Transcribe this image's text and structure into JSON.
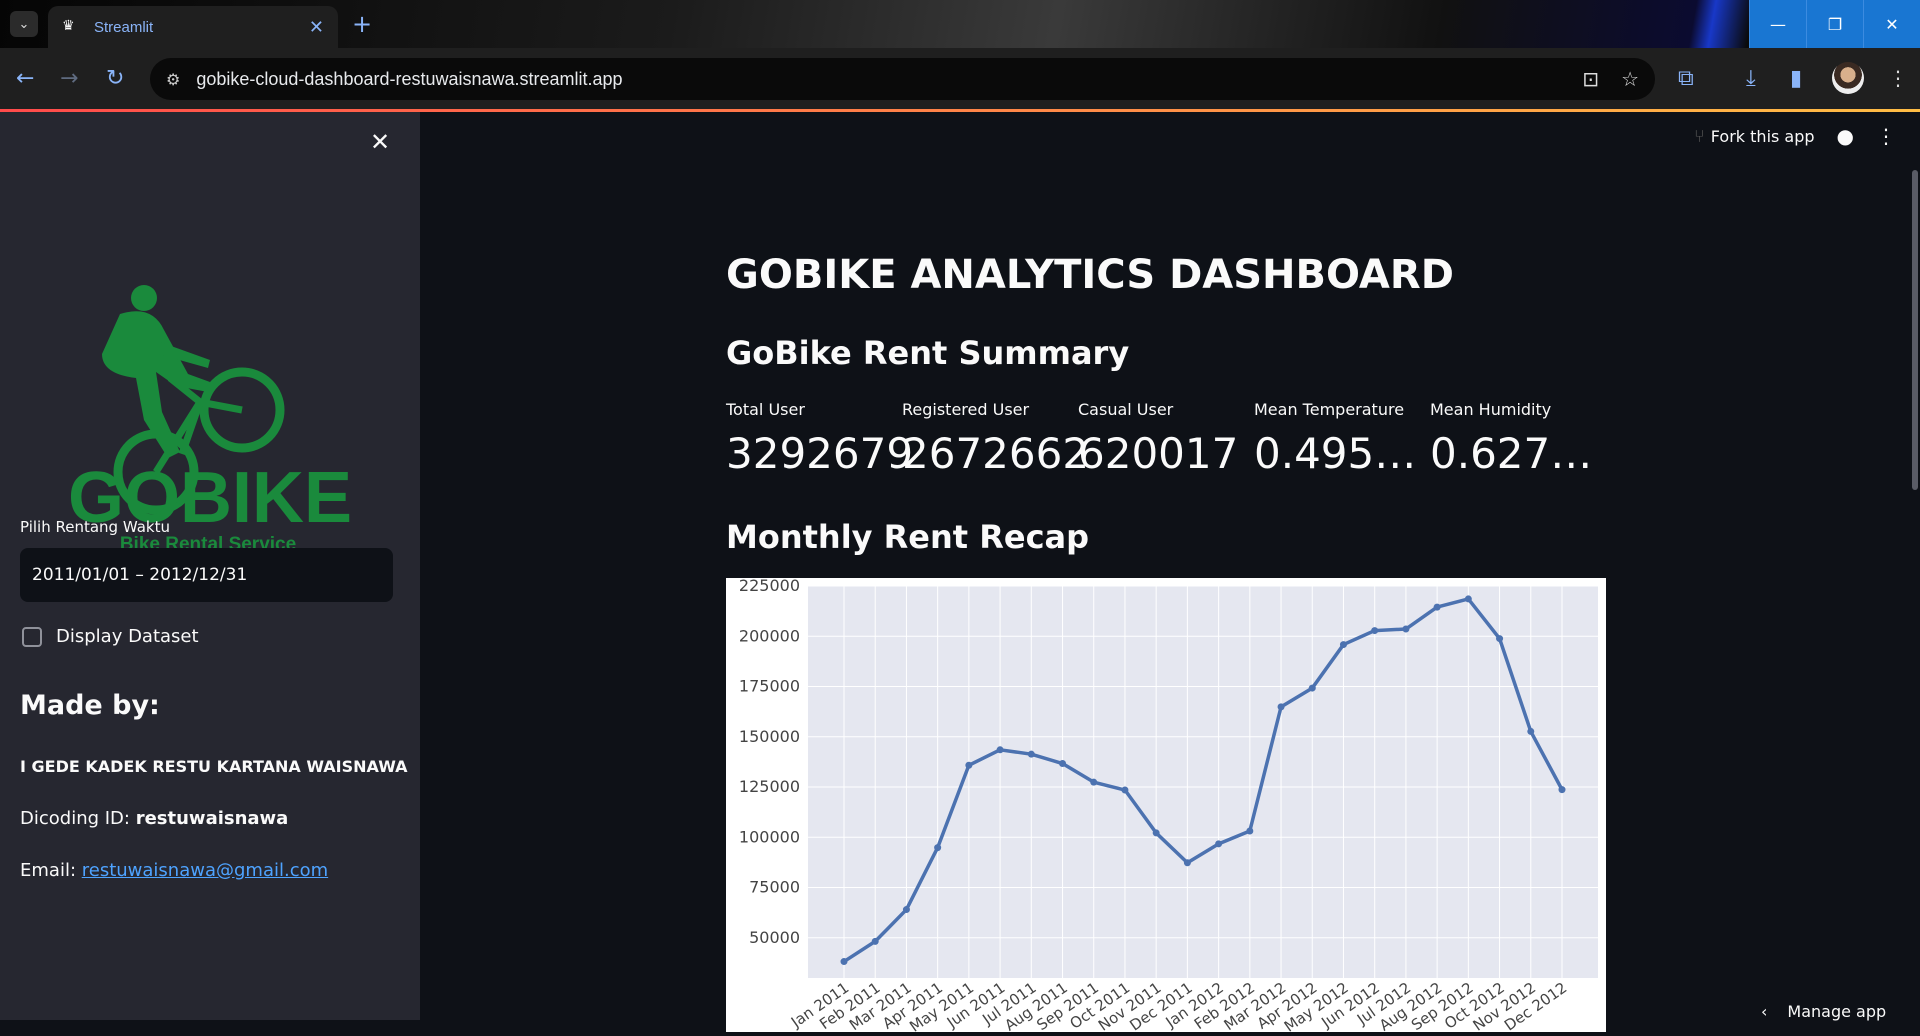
{
  "browser": {
    "tab_title": "Streamlit",
    "url": "gobike-cloud-dashboard-restuwaisnawa.streamlit.app"
  },
  "header": {
    "fork_label": "Fork this app"
  },
  "sidebar": {
    "logo_text": "GOBIKE",
    "logo_subtitle": "Bike Rental Service",
    "date_label": "Pilih Rentang Waktu",
    "date_value": "2011/01/01 – 2012/12/31",
    "checkbox_label": "Display Dataset",
    "made_by_heading": "Made by:",
    "author": "I GEDE KADEK RESTU KARTANA WAISNAWA",
    "dicoding_prefix": "Dicoding ID: ",
    "dicoding_id": "restuwaisnawa",
    "email_prefix": "Email: ",
    "email": "restuwaisnawa@gmail.com"
  },
  "main": {
    "title": "GOBIKE ANALYTICS DASHBOARD",
    "summary_heading": "GoBike Rent Summary",
    "metrics": [
      {
        "label": "Total User",
        "value": "3292679"
      },
      {
        "label": "Registered User",
        "value": "2672662"
      },
      {
        "label": "Casual User",
        "value": "620017"
      },
      {
        "label": "Mean Temperature",
        "value": "0.495…"
      },
      {
        "label": "Mean Humidity",
        "value": "0.627…"
      }
    ],
    "recap_heading": "Monthly Rent Recap"
  },
  "manage_app_label": "Manage app",
  "colors": {
    "accent": "#ff4b4b",
    "line": "#4c72b0",
    "plot_bg": "#e5e7f0",
    "logo_green": "#1a8a3c"
  },
  "chart_data": {
    "type": "line",
    "title": "",
    "xlabel": "",
    "ylabel": "",
    "ylim": [
      30000,
      225000
    ],
    "yticks": [
      50000,
      75000,
      100000,
      125000,
      150000,
      175000,
      200000,
      225000
    ],
    "categories": [
      "Jan 2011",
      "Feb 2011",
      "Mar 2011",
      "Apr 2011",
      "May 2011",
      "Jun 2011",
      "Jul 2011",
      "Aug 2011",
      "Sep 2011",
      "Oct 2011",
      "Nov 2011",
      "Dec 2011",
      "Jan 2012",
      "Feb 2012",
      "Mar 2012",
      "Apr 2012",
      "May 2012",
      "Jun 2012",
      "Jul 2012",
      "Aug 2012",
      "Sep 2012",
      "Oct 2012",
      "Nov 2012",
      "Dec 2012"
    ],
    "values": [
      38189,
      48215,
      64045,
      94870,
      135821,
      143512,
      141341,
      136691,
      127418,
      123511,
      102167,
      87323,
      96744,
      103137,
      164875,
      174224,
      195865,
      202830,
      203607,
      214503,
      218573,
      198841,
      152664,
      123713
    ]
  }
}
